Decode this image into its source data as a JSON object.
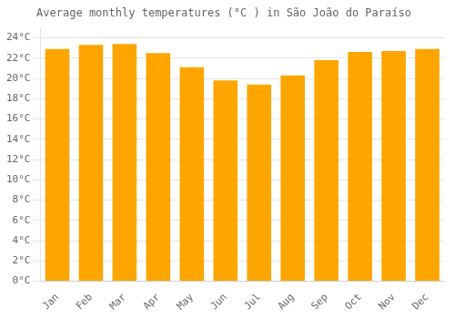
{
  "chart_data": {
    "type": "bar",
    "title": "Average monthly temperatures (°C ) in São João do Paraíso",
    "categories": [
      "Jan",
      "Feb",
      "Mar",
      "Apr",
      "May",
      "Jun",
      "Jul",
      "Aug",
      "Sep",
      "Oct",
      "Nov",
      "Dec"
    ],
    "values": [
      22.9,
      23.3,
      23.4,
      22.5,
      21.1,
      19.8,
      19.4,
      20.3,
      21.8,
      22.6,
      22.7,
      22.9
    ],
    "color": "#FFA500",
    "ylim": [
      0,
      25
    ],
    "yticks": [
      {
        "value": 0,
        "label": "0°C"
      },
      {
        "value": 2,
        "label": "2°C"
      },
      {
        "value": 4,
        "label": "4°C"
      },
      {
        "value": 6,
        "label": "6°C"
      },
      {
        "value": 8,
        "label": "8°C"
      },
      {
        "value": 10,
        "label": "10°C"
      },
      {
        "value": 12,
        "label": "12°C"
      },
      {
        "value": 14,
        "label": "14°C"
      },
      {
        "value": 16,
        "label": "16°C"
      },
      {
        "value": 18,
        "label": "18°C"
      },
      {
        "value": 20,
        "label": "20°C"
      },
      {
        "value": 22,
        "label": "22°C"
      },
      {
        "value": 24,
        "label": "24°C"
      }
    ],
    "grid": true
  }
}
